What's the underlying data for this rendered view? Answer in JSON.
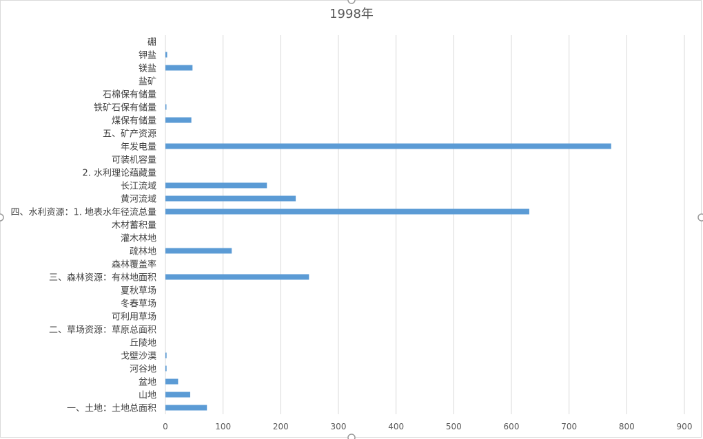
{
  "chart_data": {
    "type": "bar",
    "orientation": "horizontal",
    "title": "1998年",
    "xlabel": "",
    "ylabel": "",
    "xlim": [
      0,
      900
    ],
    "xticks": [
      0,
      100,
      200,
      300,
      400,
      500,
      600,
      700,
      800,
      900
    ],
    "grid": true,
    "legend": "none",
    "bar_color": "#5b9bd5",
    "categories": [
      "一、土地：土地总面积",
      "山地",
      "盆地",
      "河谷地",
      "戈壁沙漠",
      "丘陵地",
      "二、草场资源：草原总面积",
      "可利用草场",
      "冬春草场",
      "夏秋草场",
      "三、森林资源：有林地面积",
      "森林覆盖率",
      "疏林地",
      "灌木林地",
      "木材蓄积量",
      "四、水利资源：1. 地表水年径流总量",
      "黄河流域",
      "长江流域",
      "2. 水利理论蕴藏量",
      "可装机容量",
      "年发电量",
      "五、矿产资源",
      "煤保有储量",
      "铁矿石保有储量",
      "石棉保有储量",
      "盐矿",
      "镁盐",
      "钾盐",
      "硼"
    ],
    "values": [
      72,
      43,
      22,
      2,
      2,
      0,
      0,
      0,
      0,
      0,
      249,
      0,
      115,
      0,
      0,
      631,
      226,
      176,
      0,
      0,
      773,
      0,
      45,
      1,
      0,
      0,
      47,
      3,
      0
    ]
  }
}
